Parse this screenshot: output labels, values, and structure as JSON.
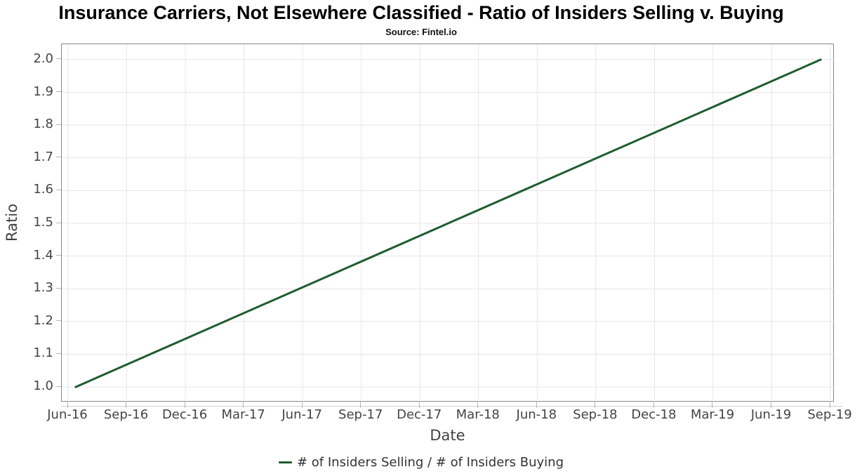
{
  "title": "Insurance Carriers, Not Elsewhere Classified - Ratio of Insiders Selling v. Buying",
  "subtitle": "Source: Fintel.io",
  "chart_data": {
    "type": "line",
    "title": "Insurance Carriers, Not Elsewhere Classified - Ratio of Insiders Selling v. Buying",
    "subtitle": "Source: Fintel.io",
    "xlabel": "Date",
    "ylabel": "Ratio",
    "x_ticks": [
      "Jun-16",
      "Sep-16",
      "Dec-16",
      "Mar-17",
      "Jun-17",
      "Sep-17",
      "Dec-17",
      "Mar-18",
      "Jun-18",
      "Sep-18",
      "Dec-18",
      "Mar-19",
      "Jun-19",
      "Sep-19"
    ],
    "y_ticks": [
      "1.0",
      "1.1",
      "1.2",
      "1.3",
      "1.4",
      "1.5",
      "1.6",
      "1.7",
      "1.8",
      "1.9",
      "2.0"
    ],
    "ylim": [
      0.953,
      2.047
    ],
    "grid": true,
    "gridline_color": "#e6e6e6",
    "axis_text_color": "#444444",
    "line_color": "#1f5c31",
    "legend": {
      "position": "bottom-center",
      "entries": [
        {
          "label": "# of Insiders Selling / # of Insiders Buying",
          "color": "#1f5c31"
        }
      ]
    },
    "series": [
      {
        "name": "# of Insiders Selling / # of Insiders Buying",
        "color": "#1f5c31",
        "points": [
          {
            "x": "Jun-16",
            "y": 1.0,
            "x_frac": 0.018
          },
          {
            "x": "Sep-19",
            "y": 2.0,
            "x_frac": 0.982
          }
        ]
      }
    ]
  }
}
